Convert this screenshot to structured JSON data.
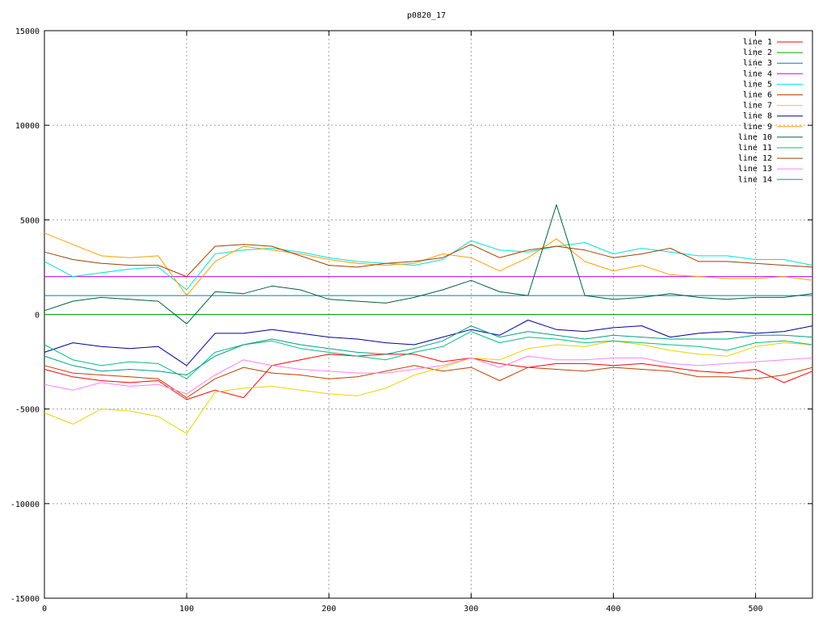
{
  "chart_data": {
    "type": "line",
    "title": "p0820_17",
    "xlabel": "",
    "ylabel": "",
    "xlim": [
      0,
      540
    ],
    "ylim": [
      -15000,
      15000
    ],
    "xticks": [
      0,
      100,
      200,
      300,
      400,
      500
    ],
    "yticks": [
      -15000,
      -10000,
      -5000,
      0,
      5000,
      10000,
      15000
    ],
    "grid": true,
    "legend_position": "top-right",
    "x": [
      0,
      20,
      40,
      60,
      80,
      100,
      120,
      140,
      160,
      180,
      200,
      220,
      240,
      260,
      280,
      300,
      320,
      340,
      360,
      380,
      400,
      420,
      440,
      460,
      480,
      500,
      520,
      540
    ],
    "series": [
      {
        "name": "line 1",
        "color": "#ff0000",
        "values": [
          -2900,
          -3300,
          -3500,
          -3600,
          -3500,
          -4500,
          -4000,
          -4400,
          -2700,
          -2400,
          -2100,
          -2200,
          -2100,
          -2100,
          -2500,
          -2300,
          -2600,
          -2800,
          -2600,
          -2600,
          -2700,
          -2600,
          -2800,
          -3000,
          -3100,
          -2900,
          -3600,
          -3000
        ]
      },
      {
        "name": "line 2",
        "color": "#00a000",
        "values": [
          0,
          0,
          0,
          0,
          0,
          0,
          0,
          0,
          0,
          0,
          0,
          0,
          0,
          0,
          0,
          0,
          0,
          0,
          0,
          0,
          0,
          0,
          0,
          0,
          0,
          0,
          0,
          0
        ]
      },
      {
        "name": "line 3",
        "color": "#0080a0",
        "values": [
          1000,
          1000,
          1000,
          1000,
          1000,
          1000,
          1000,
          1000,
          1000,
          1000,
          1000,
          1000,
          1000,
          1000,
          1000,
          1000,
          1000,
          1000,
          1000,
          1000,
          1000,
          1000,
          1000,
          1000,
          1000,
          1000,
          1000,
          1000
        ]
      },
      {
        "name": "line 4",
        "color": "#c000ff",
        "values": [
          2000,
          2000,
          2000,
          2000,
          2000,
          2000,
          2000,
          2000,
          2000,
          2000,
          2000,
          2000,
          2000,
          2000,
          2000,
          2000,
          2000,
          2000,
          2000,
          2000,
          2000,
          2000,
          2000,
          2000,
          2000,
          2000,
          2000,
          2000
        ]
      },
      {
        "name": "line 5",
        "color": "#00e0e0",
        "values": [
          2800,
          2000,
          2200,
          2400,
          2500,
          1300,
          3200,
          3400,
          3500,
          3300,
          3000,
          2800,
          2700,
          2600,
          2900,
          3900,
          3400,
          3300,
          3600,
          3800,
          3200,
          3500,
          3300,
          3100,
          3100,
          2900,
          2900,
          2600
        ]
      },
      {
        "name": "line 6",
        "color": "#c04000",
        "values": [
          -2700,
          -3100,
          -3200,
          -3300,
          -3400,
          -4400,
          -3400,
          -2800,
          -3100,
          -3200,
          -3400,
          -3300,
          -3000,
          -2700,
          -3000,
          -2800,
          -3500,
          -2800,
          -2900,
          -3000,
          -2800,
          -2900,
          -3000,
          -3300,
          -3300,
          -3400,
          -3200,
          -2800
        ]
      },
      {
        "name": "line 7",
        "color": "#f0d000",
        "values": [
          -5200,
          -5800,
          -5000,
          -5100,
          -5400,
          -6300,
          -4100,
          -3900,
          -3800,
          -4000,
          -4200,
          -4300,
          -3900,
          -3200,
          -2800,
          -2300,
          -2400,
          -1800,
          -1600,
          -1700,
          -1400,
          -1600,
          -1900,
          -2100,
          -2200,
          -1700,
          -1500,
          -1600
        ]
      },
      {
        "name": "line 8",
        "color": "#0000a0",
        "values": [
          -2000,
          -1500,
          -1700,
          -1800,
          -1700,
          -2700,
          -1000,
          -1000,
          -800,
          -1000,
          -1200,
          -1300,
          -1500,
          -1600,
          -1200,
          -800,
          -1100,
          -300,
          -800,
          -900,
          -700,
          -600,
          -1200,
          -1000,
          -900,
          -1000,
          -900,
          -600
        ]
      },
      {
        "name": "line 9",
        "color": "#ffa000",
        "values": [
          4300,
          3700,
          3100,
          3000,
          3100,
          1000,
          2800,
          3600,
          3400,
          3200,
          2900,
          2700,
          2600,
          2700,
          3200,
          3000,
          2300,
          3000,
          4000,
          2800,
          2300,
          2600,
          2100,
          2000,
          1900,
          1900,
          2000,
          1800
        ]
      },
      {
        "name": "line 10",
        "color": "#006040",
        "values": [
          200,
          700,
          900,
          800,
          700,
          -500,
          1200,
          1100,
          1500,
          1300,
          800,
          700,
          600,
          900,
          1300,
          1800,
          1200,
          1000,
          5800,
          1000,
          800,
          900,
          1100,
          900,
          800,
          900,
          900,
          1100
        ]
      },
      {
        "name": "line 11",
        "color": "#00c080",
        "values": [
          -1600,
          -2400,
          -2700,
          -2500,
          -2600,
          -3400,
          -2000,
          -1600,
          -1400,
          -1800,
          -2000,
          -2200,
          -2400,
          -2000,
          -1700,
          -900,
          -1500,
          -1200,
          -1300,
          -1500,
          -1400,
          -1500,
          -1600,
          -1700,
          -1900,
          -1500,
          -1400,
          -1600
        ]
      },
      {
        "name": "line 12",
        "color": "#a04000",
        "values": [
          3300,
          2900,
          2700,
          2600,
          2600,
          2000,
          3600,
          3700,
          3600,
          3100,
          2600,
          2500,
          2700,
          2800,
          3000,
          3700,
          3000,
          3400,
          3600,
          3400,
          3000,
          3200,
          3500,
          2800,
          2800,
          2700,
          2600,
          2500
        ]
      },
      {
        "name": "line 13",
        "color": "#ff80ff",
        "values": [
          -3700,
          -4000,
          -3600,
          -3800,
          -3700,
          -4200,
          -3200,
          -2400,
          -2700,
          -2900,
          -3000,
          -3100,
          -3100,
          -2900,
          -2700,
          -2300,
          -2800,
          -2200,
          -2400,
          -2400,
          -2300,
          -2300,
          -2600,
          -2700,
          -2600,
          -2500,
          -2400,
          -2300
        ]
      },
      {
        "name": "line 14",
        "color": "#00a080",
        "values": [
          -2200,
          -2700,
          -3000,
          -2900,
          -3000,
          -3200,
          -2200,
          -1600,
          -1300,
          -1600,
          -1800,
          -2000,
          -2100,
          -1800,
          -1400,
          -600,
          -1200,
          -900,
          -1100,
          -1300,
          -1100,
          -1200,
          -1300,
          -1300,
          -1300,
          -1100,
          -1100,
          -1200
        ]
      }
    ]
  }
}
